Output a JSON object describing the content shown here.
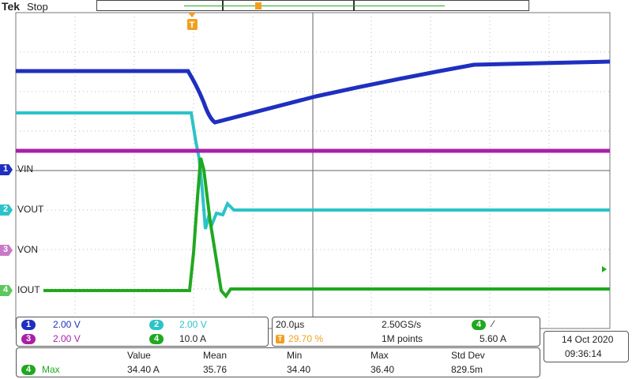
{
  "header": {
    "brand": "Tek",
    "status": "Stop"
  },
  "channels": [
    {
      "id": "1",
      "label": "VIN",
      "color": "#1f2fbf",
      "scale": "2.00 V"
    },
    {
      "id": "2",
      "label": "VOUT",
      "color": "#2cc3c8",
      "scale": "2.00 V"
    },
    {
      "id": "3",
      "label": "VON",
      "color": "#a820a8",
      "scale": "2.00 V"
    },
    {
      "id": "4",
      "label": "IOUT",
      "color": "#20a820",
      "scale": "10.0 A"
    }
  ],
  "trigger_marker": "T",
  "timebase": {
    "per_div": "20.0µs",
    "sample_rate": "2.50GS/s",
    "position": "29.70 %",
    "record": "1M points"
  },
  "trigger": {
    "source": "4",
    "slope": "∕",
    "level": "5.60 A"
  },
  "measurement": {
    "headers": [
      "Value",
      "Mean",
      "Min",
      "Max",
      "Std Dev"
    ],
    "source": "4",
    "name": "Max",
    "values": [
      "34.40 A",
      "35.76",
      "34.40",
      "36.40",
      "829.5m"
    ]
  },
  "datetime": {
    "date": "14 Oct  2020",
    "time": "09:36:14"
  }
}
